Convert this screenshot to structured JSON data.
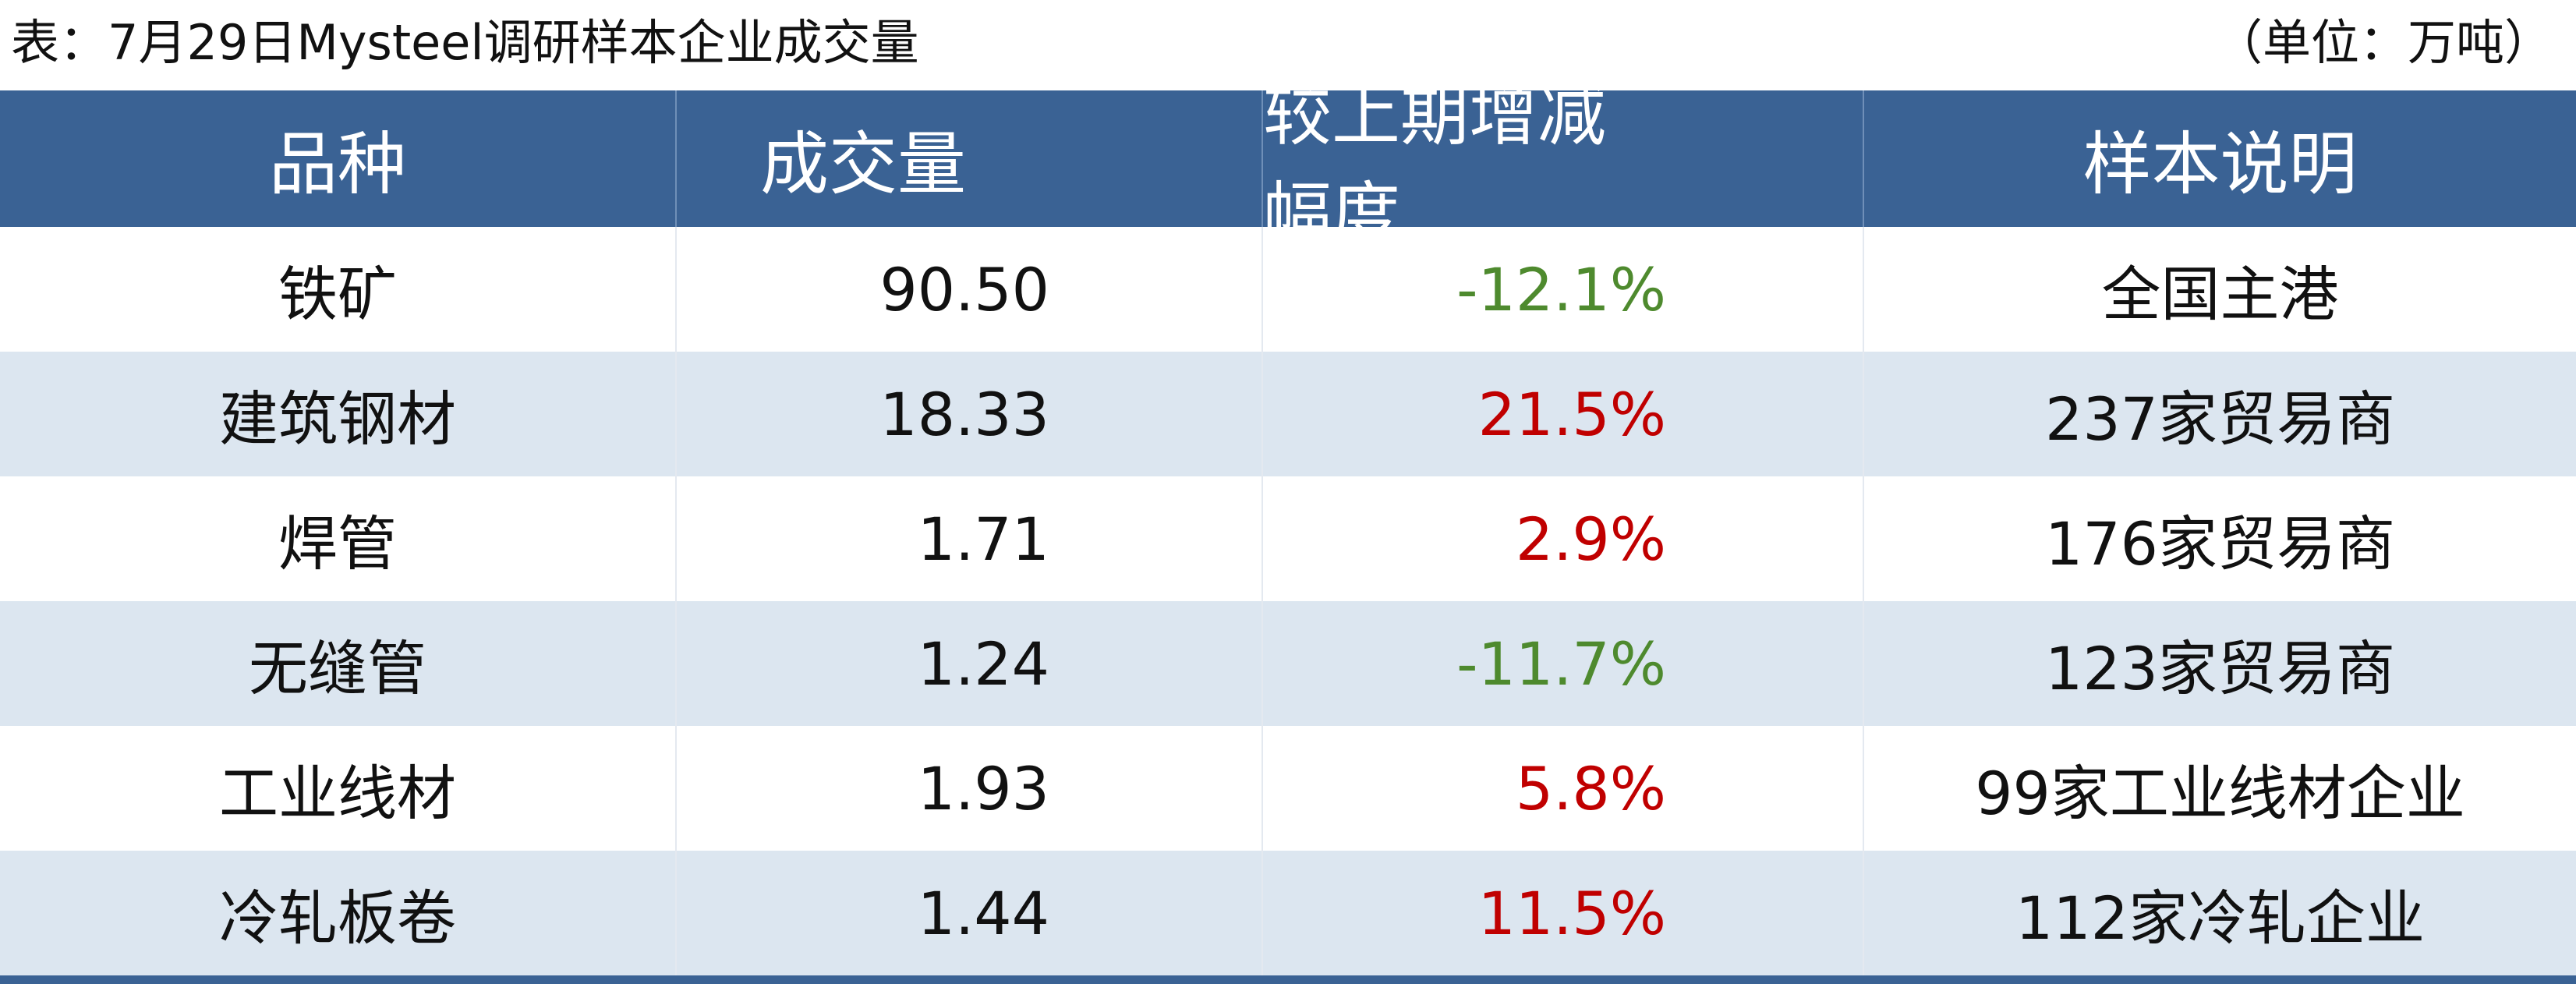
{
  "header": {
    "title": "表：7月29日Mysteel调研样本企业成交量",
    "unit": "（单位：万吨）"
  },
  "table": {
    "columns": [
      "品种",
      "成交量",
      "较上期增减幅度",
      "样本说明"
    ],
    "rows": [
      [
        "铁矿",
        "90.50",
        "-12.1%",
        "全国主港"
      ],
      [
        "建筑钢材",
        "18.33",
        "21.5%",
        "237家贸易商"
      ],
      [
        "焊管",
        "1.71",
        "2.9%",
        "176家贸易商"
      ],
      [
        "无缝管",
        "1.24",
        "-11.7%",
        "123家贸易商"
      ],
      [
        "工业线材",
        "1.93",
        "5.8%",
        "99家工业线材企业"
      ],
      [
        "冷轧板卷",
        "1.44",
        "11.5%",
        "112家冷轧企业"
      ]
    ],
    "increase_color": "#c00000",
    "decrease_color": "#4e8a2e"
  }
}
